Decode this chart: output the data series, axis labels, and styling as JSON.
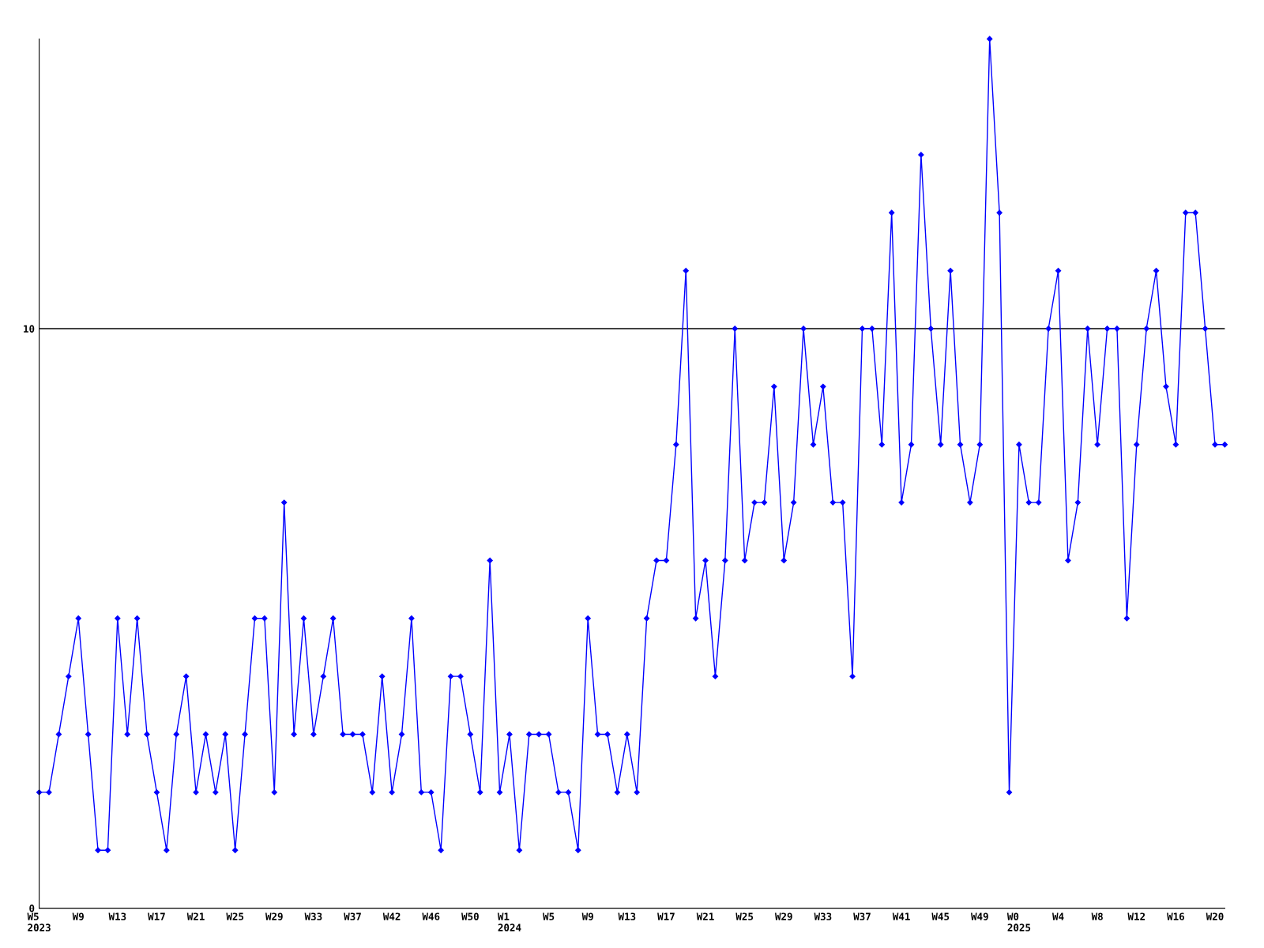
{
  "chart_data": {
    "type": "line",
    "categories": [
      "W5\n2023",
      null,
      null,
      null,
      "W9",
      null,
      null,
      null,
      "W13",
      null,
      null,
      null,
      "W17",
      null,
      null,
      null,
      "W21",
      null,
      null,
      null,
      "W25",
      null,
      null,
      null,
      "W29",
      null,
      null,
      null,
      "W33",
      null,
      null,
      null,
      "W37",
      null,
      null,
      null,
      "W42",
      null,
      null,
      null,
      "W46",
      null,
      null,
      null,
      "W50",
      null,
      null,
      null,
      "W1\n2024",
      null,
      null,
      null,
      "W5",
      null,
      null,
      null,
      "W9",
      null,
      null,
      null,
      "W13",
      null,
      null,
      null,
      "W17",
      null,
      null,
      null,
      "W21",
      null,
      null,
      null,
      "W25",
      null,
      null,
      null,
      "W29",
      null,
      null,
      null,
      "W33",
      null,
      null,
      null,
      "W37",
      null,
      null,
      null,
      "W41",
      null,
      null,
      null,
      "W45",
      null,
      null,
      null,
      "W49",
      null,
      null,
      null,
      "W0\n2025",
      null,
      null,
      null,
      "W4",
      null,
      null,
      null,
      "W8",
      null,
      null,
      null,
      "W12",
      null,
      null,
      null,
      "W16",
      null,
      null,
      null,
      "W20",
      null
    ],
    "series": [
      {
        "color": "#0000ff",
        "values": [
          2,
          2,
          3,
          4,
          5,
          3,
          1,
          1,
          5,
          3,
          5,
          3,
          2,
          1,
          3,
          4,
          2,
          3,
          2,
          3,
          1,
          3,
          5,
          5,
          2,
          7,
          3,
          5,
          3,
          4,
          5,
          3,
          3,
          3,
          2,
          4,
          2,
          3,
          5,
          2,
          2,
          1,
          4,
          4,
          3,
          2,
          6,
          2,
          3,
          1,
          3,
          3,
          3,
          2,
          2,
          1,
          5,
          3,
          3,
          2,
          3,
          2,
          5,
          6,
          6,
          8,
          11,
          5,
          6,
          4,
          6,
          10,
          6,
          7,
          7,
          9,
          6,
          7,
          10,
          8,
          9,
          7,
          7,
          4,
          10,
          10,
          8,
          12,
          7,
          8,
          13,
          10,
          8,
          11,
          8,
          7,
          8,
          15,
          12,
          2,
          8,
          7,
          7,
          10,
          11,
          6,
          7,
          10,
          8,
          10,
          10,
          5,
          8,
          10,
          11,
          9,
          8,
          12,
          12,
          10,
          8,
          8
        ]
      }
    ],
    "ylim": [
      0,
      15
    ],
    "yticks": [
      0,
      10
    ],
    "grid": "y",
    "marker": "diamond",
    "line_style": "solid",
    "legend": false
  }
}
